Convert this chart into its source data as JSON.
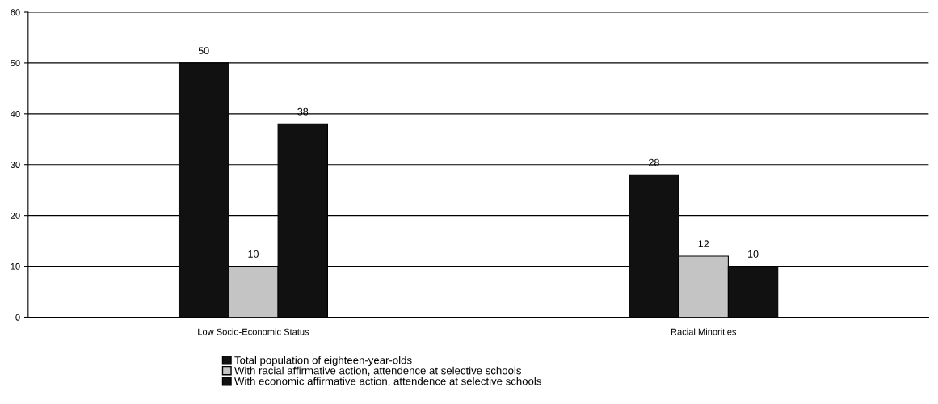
{
  "chart_data": {
    "type": "bar",
    "categories": [
      "Low Socio-Economic Status",
      "Racial Minorities"
    ],
    "series": [
      {
        "name": "Total population of eighteen-year-olds",
        "color": "#111111",
        "values": [
          50,
          28
        ]
      },
      {
        "name": "With racial affirmative action, attendence at selective schools",
        "color": "#c4c4c4",
        "values": [
          10,
          12
        ]
      },
      {
        "name": "With economic affirmative action, attendence at selective schools",
        "color": "#111111",
        "values": [
          38,
          10
        ]
      }
    ],
    "ylim": [
      0,
      60
    ],
    "yticks": [
      0,
      10,
      20,
      30,
      40,
      50,
      60
    ],
    "grid": "y",
    "data_labels": true,
    "legend": "bottom"
  }
}
